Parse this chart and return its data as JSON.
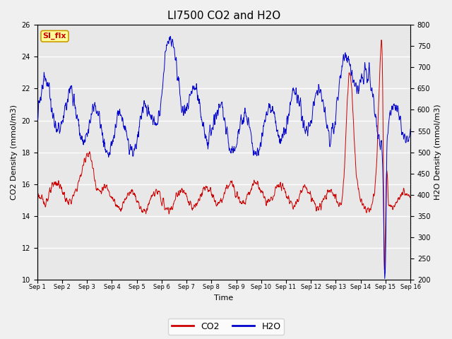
{
  "title": "LI7500 CO2 and H2O",
  "xlabel": "Time",
  "ylabel_left": "CO2 Density (mmol/m3)",
  "ylabel_right": "H2O Density (mmol/m3)",
  "xlim": [
    0,
    15
  ],
  "ylim_left": [
    10,
    26
  ],
  "ylim_right": [
    200,
    800
  ],
  "yticks_left": [
    10,
    12,
    14,
    16,
    18,
    20,
    22,
    24,
    26
  ],
  "yticks_right": [
    200,
    250,
    300,
    350,
    400,
    450,
    500,
    550,
    600,
    650,
    700,
    750,
    800
  ],
  "xtick_positions": [
    0,
    1,
    2,
    3,
    4,
    5,
    6,
    7,
    8,
    9,
    10,
    11,
    12,
    13,
    14,
    15
  ],
  "xtick_labels": [
    "Sep 1",
    "Sep 2",
    "Sep 3",
    "Sep 4",
    "Sep 5",
    "Sep 6",
    "Sep 7",
    "Sep 8",
    "Sep 9",
    "Sep 10",
    "Sep 11",
    "Sep 12",
    "Sep 13",
    "Sep 14",
    "Sep 15",
    "Sep 16"
  ],
  "co2_color": "#cc0000",
  "h2o_color": "#0000cc",
  "legend_co2": "CO2",
  "legend_h2o": "H2O",
  "annotation_text": "SI_flx",
  "annotation_bg": "#ffff99",
  "annotation_border": "#cc9900",
  "plot_bg": "#e8e8e8",
  "fig_bg": "#f0f0f0",
  "grid_color": "#ffffff",
  "title_fontsize": 11,
  "label_fontsize": 8,
  "tick_fontsize": 7,
  "legend_fontsize": 9
}
